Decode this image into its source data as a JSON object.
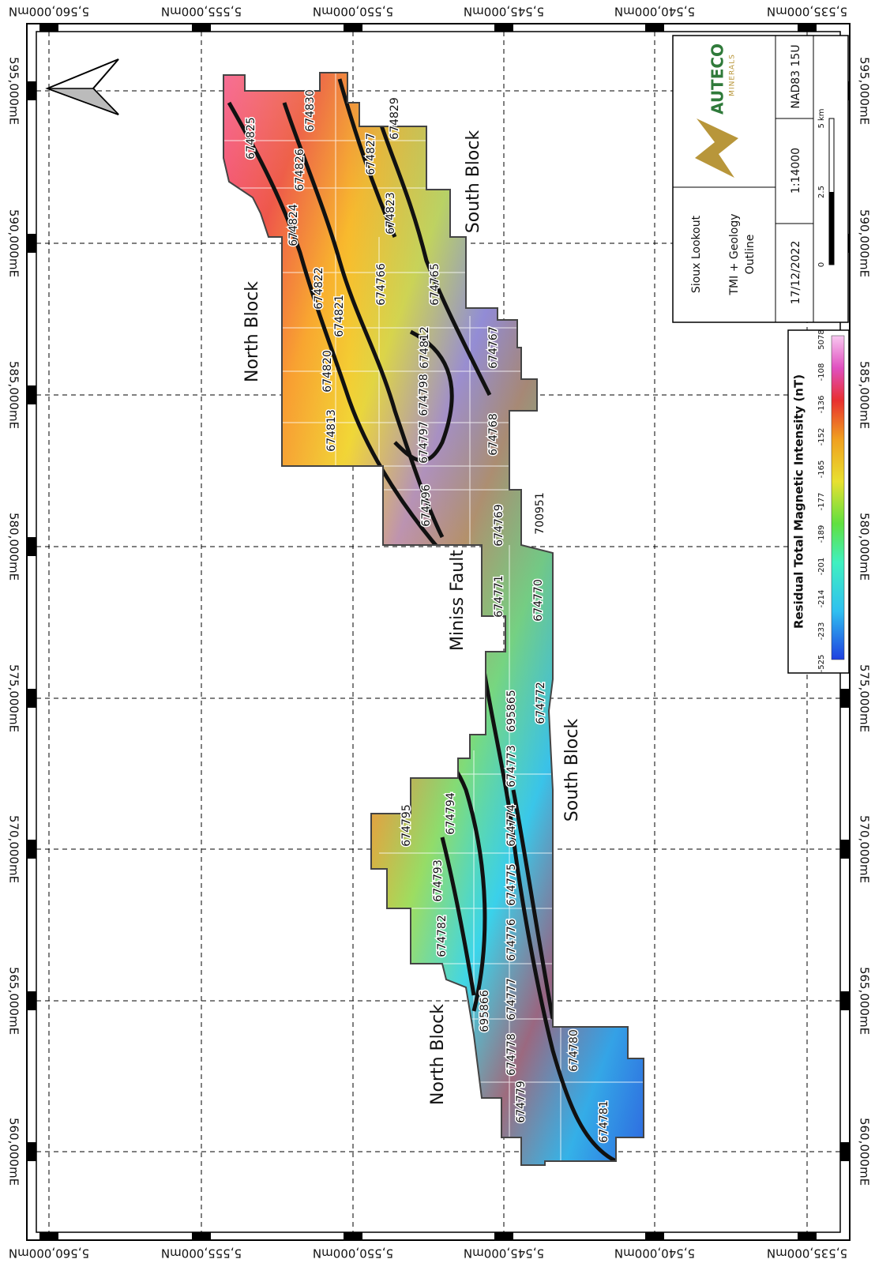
{
  "coordinates": {
    "eastings": [
      "595,000mE",
      "590,000mE",
      "585,000mE",
      "580,000mE",
      "575,000mE",
      "570,000mE",
      "565,000mE",
      "560,000mE"
    ],
    "northings": [
      "5,560,000mN",
      "5,555,000mN",
      "5,550,000mN",
      "5,545,000mN",
      "5,540,000mN",
      "5,535,000mN"
    ]
  },
  "region_labels": [
    "North Block",
    "South Block",
    "Miniss Fault",
    "South Block",
    "North Block"
  ],
  "claims": [
    "674825",
    "674826",
    "674830",
    "674829",
    "674827",
    "674824",
    "674823",
    "674822",
    "674821",
    "674766",
    "674765",
    "674820",
    "674812",
    "674767",
    "674813",
    "674798",
    "674797",
    "674768",
    "674796",
    "674769",
    "700951",
    "674771",
    "674770",
    "695865",
    "674772",
    "674773",
    "674794",
    "674795",
    "674774",
    "674793",
    "674775",
    "674782",
    "674776",
    "695866",
    "674777",
    "674778",
    "674779",
    "674780",
    "674781"
  ],
  "title_block": {
    "logo_name": "AUTECO",
    "logo_sub": "MINERALS",
    "project": "Sioux Lookout",
    "subtitle_lines": [
      "TMI + Geology",
      "Outline"
    ],
    "date": "17/12/2022",
    "scale": "1:14000",
    "datum": "NAD83 15U",
    "scale_bar": [
      "0",
      "2.5",
      "5 km"
    ]
  },
  "legend": {
    "title": "Residual Total Magnetic Intensity (nT)",
    "labels": [
      "-525",
      "-233",
      "-214",
      "-201",
      "-189",
      "-177",
      "-165",
      "-152",
      "-136",
      "-108",
      "5078"
    ]
  }
}
